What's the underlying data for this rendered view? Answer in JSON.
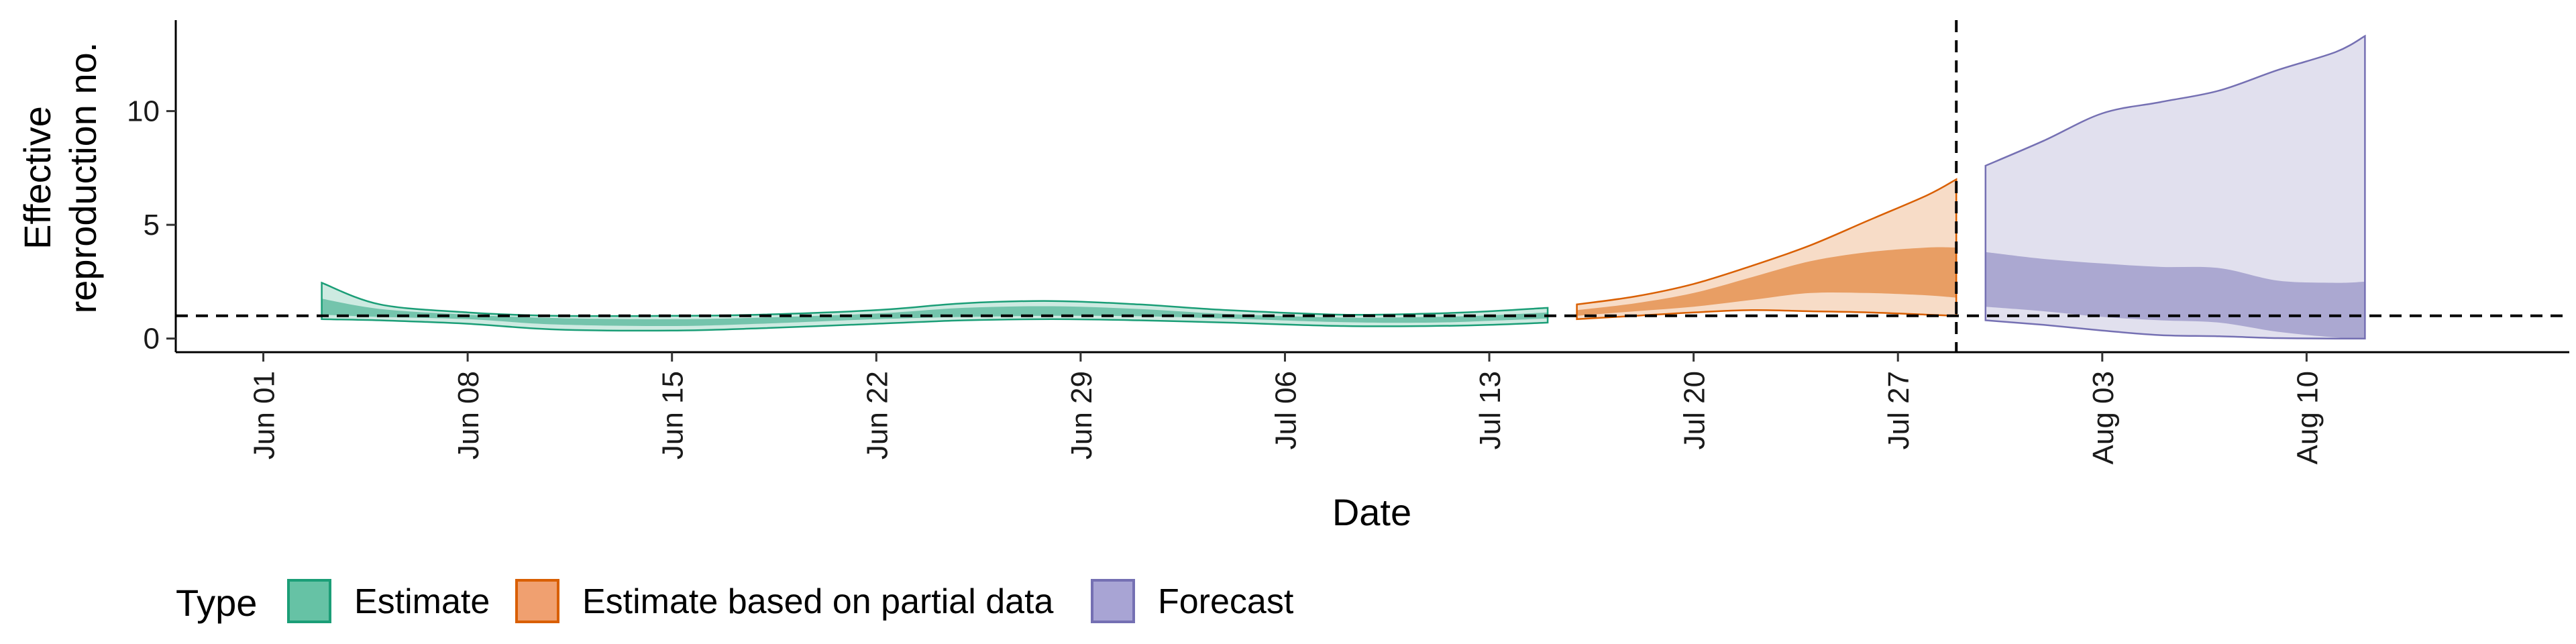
{
  "chart_data": {
    "type": "area",
    "xlabel": "Date",
    "ylabel": [
      "Effective",
      "reproduction no."
    ],
    "x_range": [
      "2020-05-29",
      "2020-08-19"
    ],
    "ylim": [
      -0.6,
      14
    ],
    "y_ticks": [
      0,
      5,
      10
    ],
    "x_ticks": [
      {
        "date": "2020-06-01",
        "label": "Jun 01"
      },
      {
        "date": "2020-06-08",
        "label": "Jun 08"
      },
      {
        "date": "2020-06-15",
        "label": "Jun 15"
      },
      {
        "date": "2020-06-22",
        "label": "Jun 22"
      },
      {
        "date": "2020-06-29",
        "label": "Jun 29"
      },
      {
        "date": "2020-07-06",
        "label": "Jul 06"
      },
      {
        "date": "2020-07-13",
        "label": "Jul 13"
      },
      {
        "date": "2020-07-20",
        "label": "Jul 20"
      },
      {
        "date": "2020-07-27",
        "label": "Jul 27"
      },
      {
        "date": "2020-08-03",
        "label": "Aug 03"
      },
      {
        "date": "2020-08-10",
        "label": "Aug 10"
      }
    ],
    "reference_line": {
      "y": 1,
      "style": "dashed"
    },
    "forecast_divider": {
      "date": "2020-07-29",
      "style": "dashed"
    },
    "grid": false,
    "legend": {
      "position": "bottom",
      "title": "Type",
      "entries": [
        {
          "label": "Estimate",
          "fill": "#66c2a5",
          "stroke": "#1b9e77"
        },
        {
          "label": "Estimate based on partial data",
          "fill": "#f0a070",
          "stroke": "#d95f02"
        },
        {
          "label": "Forecast",
          "fill": "#a8a4d4",
          "stroke": "#7570b3"
        }
      ]
    },
    "series": [
      {
        "type_label": "Estimate",
        "color": "#1b9e77",
        "points": [
          {
            "x": "2020-06-03",
            "outer": [
              0.85,
              2.45
            ],
            "inner": [
              1.05,
              1.75
            ]
          },
          {
            "x": "2020-06-05",
            "outer": [
              0.8,
              1.5
            ],
            "inner": [
              0.95,
              1.3
            ]
          },
          {
            "x": "2020-06-08",
            "outer": [
              0.65,
              1.15
            ],
            "inner": [
              0.85,
              1.05
            ]
          },
          {
            "x": "2020-06-11",
            "outer": [
              0.4,
              1.0
            ],
            "inner": [
              0.62,
              0.9
            ]
          },
          {
            "x": "2020-06-15",
            "outer": [
              0.35,
              1.0
            ],
            "inner": [
              0.55,
              0.85
            ]
          },
          {
            "x": "2020-06-18",
            "outer": [
              0.45,
              1.05
            ],
            "inner": [
              0.65,
              0.92
            ]
          },
          {
            "x": "2020-06-22",
            "outer": [
              0.65,
              1.25
            ],
            "inner": [
              0.85,
              1.1
            ]
          },
          {
            "x": "2020-06-25",
            "outer": [
              0.8,
              1.55
            ],
            "inner": [
              0.95,
              1.35
            ]
          },
          {
            "x": "2020-06-28",
            "outer": [
              0.85,
              1.65
            ],
            "inner": [
              1.0,
              1.42
            ]
          },
          {
            "x": "2020-07-01",
            "outer": [
              0.8,
              1.5
            ],
            "inner": [
              0.98,
              1.3
            ]
          },
          {
            "x": "2020-07-04",
            "outer": [
              0.7,
              1.25
            ],
            "inner": [
              0.88,
              1.08
            ]
          },
          {
            "x": "2020-07-08",
            "outer": [
              0.55,
              1.05
            ],
            "inner": [
              0.72,
              0.92
            ]
          },
          {
            "x": "2020-07-11",
            "outer": [
              0.55,
              1.1
            ],
            "inner": [
              0.7,
              0.95
            ]
          },
          {
            "x": "2020-07-13",
            "outer": [
              0.6,
              1.2
            ],
            "inner": [
              0.78,
              1.02
            ]
          },
          {
            "x": "2020-07-15",
            "outer": [
              0.7,
              1.35
            ],
            "inner": [
              0.88,
              1.15
            ]
          }
        ]
      },
      {
        "type_label": "Estimate based on partial data",
        "color": "#d95f02",
        "points": [
          {
            "x": "2020-07-16",
            "outer": [
              0.85,
              1.5
            ],
            "inner": [
              1.0,
              1.25
            ]
          },
          {
            "x": "2020-07-18",
            "outer": [
              1.0,
              1.85
            ],
            "inner": [
              1.2,
              1.55
            ]
          },
          {
            "x": "2020-07-20",
            "outer": [
              1.15,
              2.4
            ],
            "inner": [
              1.4,
              2.0
            ]
          },
          {
            "x": "2020-07-22",
            "outer": [
              1.25,
              3.2
            ],
            "inner": [
              1.7,
              2.7
            ]
          },
          {
            "x": "2020-07-24",
            "outer": [
              1.2,
              4.1
            ],
            "inner": [
              2.0,
              3.4
            ]
          },
          {
            "x": "2020-07-26",
            "outer": [
              1.15,
              5.2
            ],
            "inner": [
              2.0,
              3.8
            ]
          },
          {
            "x": "2020-07-28",
            "outer": [
              1.05,
              6.3
            ],
            "inner": [
              1.9,
              4.0
            ]
          },
          {
            "x": "2020-07-29",
            "outer": [
              1.0,
              7.0
            ],
            "inner": [
              1.8,
              4.0
            ]
          }
        ]
      },
      {
        "type_label": "Forecast",
        "color": "#7570b3",
        "points": [
          {
            "x": "2020-07-30",
            "outer": [
              0.8,
              7.6
            ],
            "inner": [
              1.4,
              3.8
            ]
          },
          {
            "x": "2020-08-01",
            "outer": [
              0.6,
              8.7
            ],
            "inner": [
              1.2,
              3.5
            ]
          },
          {
            "x": "2020-08-03",
            "outer": [
              0.35,
              9.9
            ],
            "inner": [
              0.95,
              3.3
            ]
          },
          {
            "x": "2020-08-05",
            "outer": [
              0.15,
              10.4
            ],
            "inner": [
              0.8,
              3.15
            ]
          },
          {
            "x": "2020-08-07",
            "outer": [
              0.1,
              10.9
            ],
            "inner": [
              0.7,
              3.1
            ]
          },
          {
            "x": "2020-08-09",
            "outer": [
              0.02,
              11.8
            ],
            "inner": [
              0.3,
              2.55
            ]
          },
          {
            "x": "2020-08-11",
            "outer": [
              0.0,
              12.6
            ],
            "inner": [
              0.05,
              2.45
            ]
          },
          {
            "x": "2020-08-12",
            "outer": [
              0.0,
              13.3
            ],
            "inner": [
              0.0,
              2.5
            ]
          }
        ]
      }
    ]
  }
}
